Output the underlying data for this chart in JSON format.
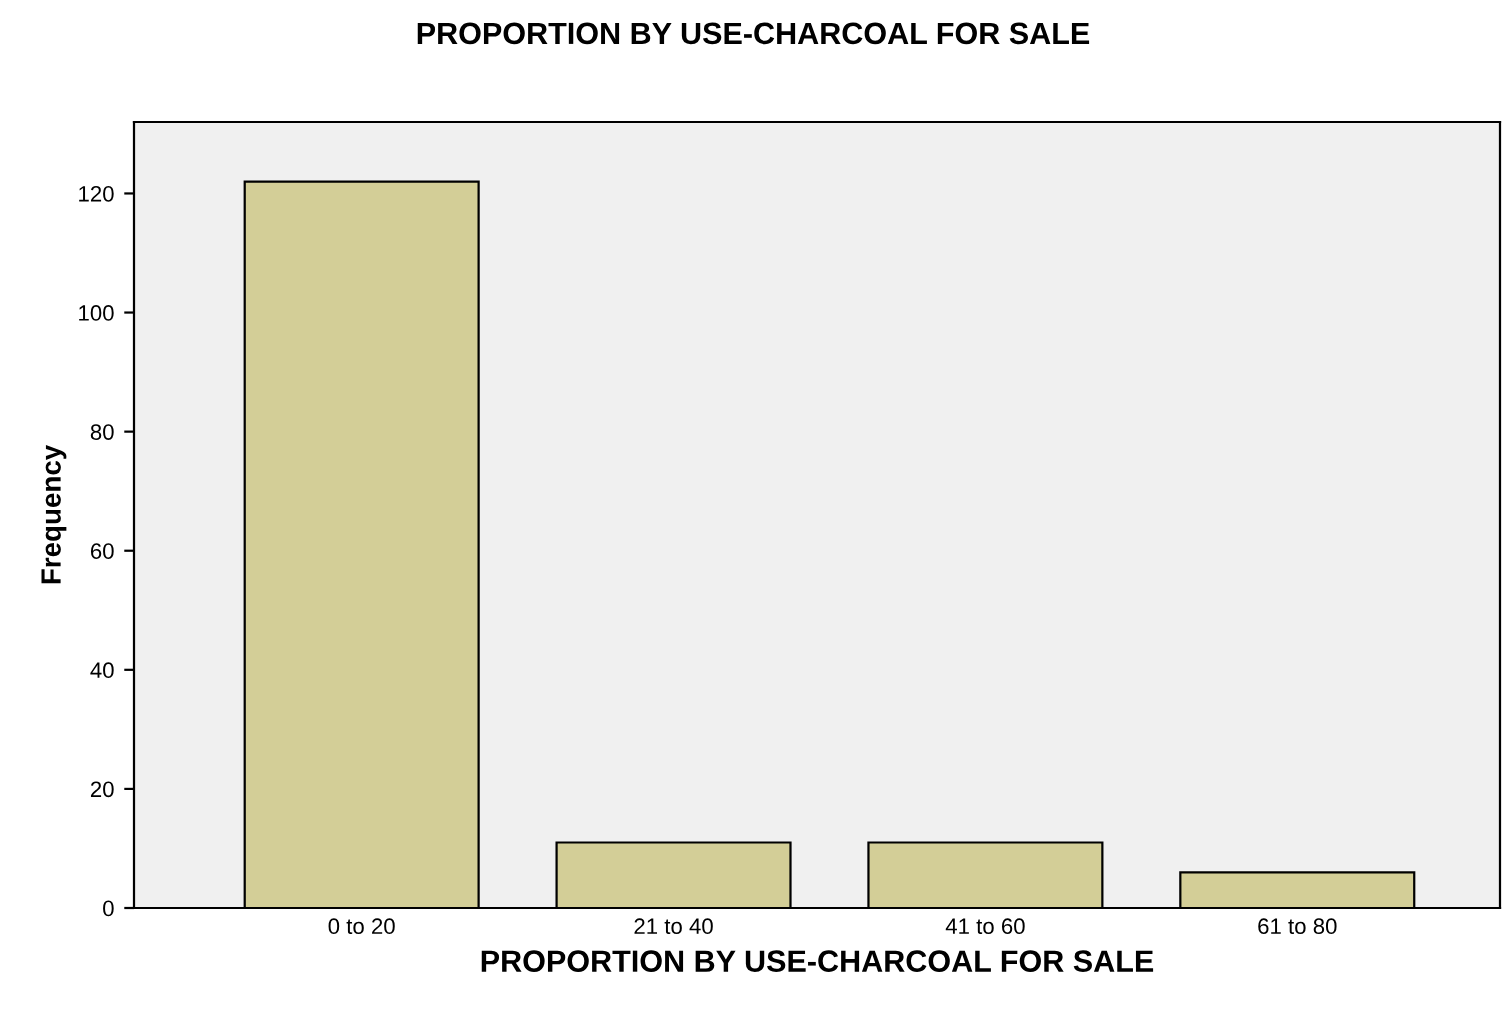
{
  "chart_data": {
    "type": "bar",
    "title": "PROPORTION BY USE-CHARCOAL FOR SALE",
    "xlabel": "PROPORTION BY USE-CHARCOAL FOR SALE",
    "ylabel": "Frequency",
    "categories": [
      "0 to 20",
      "21 to 40",
      "41 to 60",
      "61 to 80"
    ],
    "values": [
      122,
      11,
      11,
      6
    ],
    "color": "#d3ce97",
    "ylim": [
      0,
      132
    ],
    "yticks": [
      0,
      20,
      40,
      60,
      80,
      100,
      120
    ],
    "grid": false,
    "legend": false
  }
}
